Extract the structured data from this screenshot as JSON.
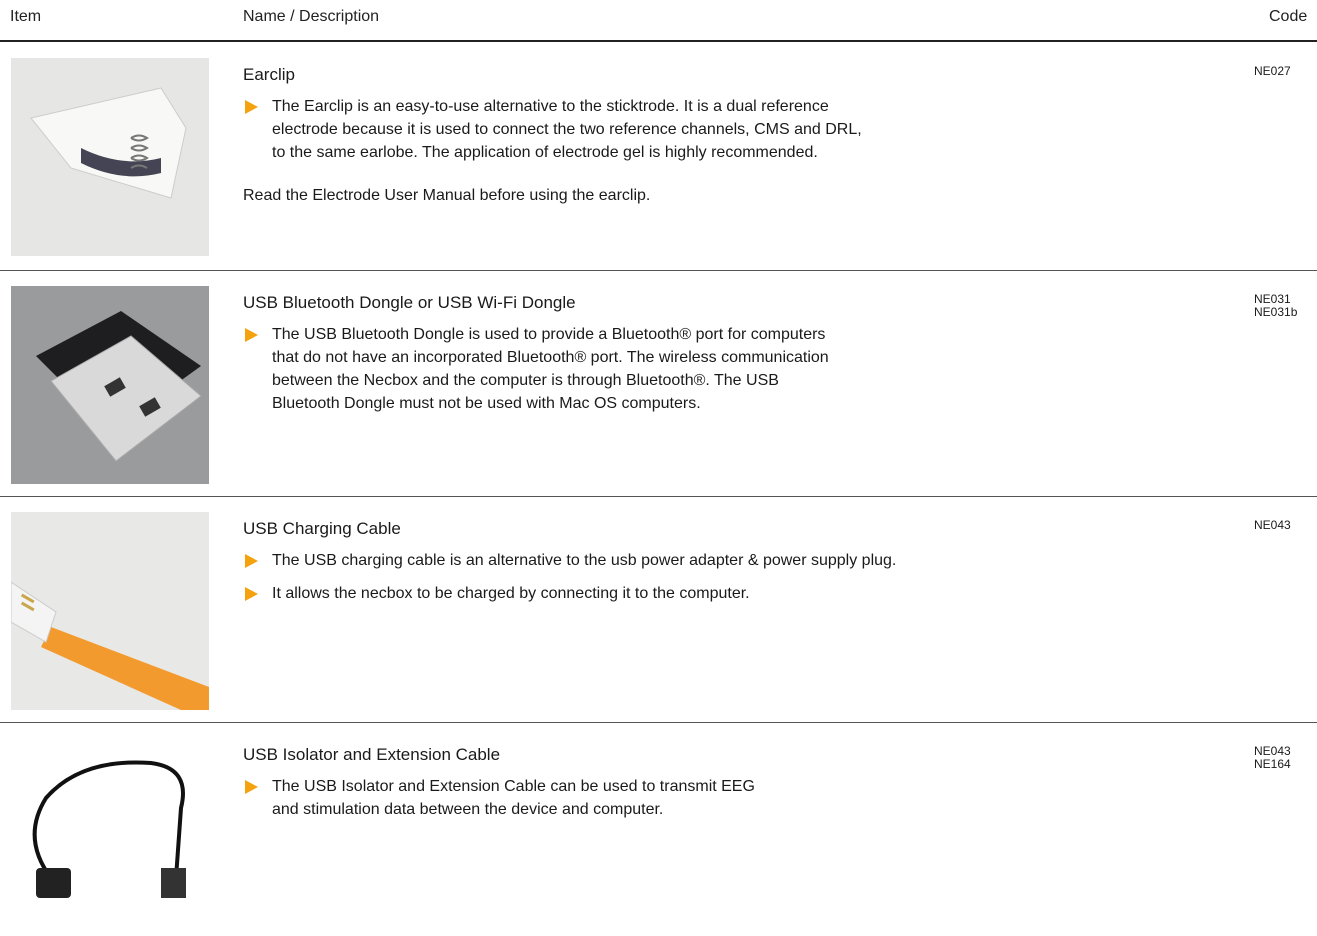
{
  "header": {
    "columns": [
      "Item",
      "Name / Description",
      "Code"
    ]
  },
  "rows": [
    {
      "name": "Earclip",
      "bullets": [
        [
          "The Earclip is an easy-to-use alternative to the sticktrode. It is a dual reference",
          "electrode because it is used to connect the two reference channels, CMS and DRL,",
          "to the same earlobe. The application of electrode gel is highly recommended."
        ]
      ],
      "note": "Read the Electrode User Manual before using the earclip.",
      "codes": [
        "NE027"
      ]
    },
    {
      "name": "USB Bluetooth Dongle or USB Wi-Fi Dongle",
      "bullets": [
        [
          "The USB Bluetooth Dongle is used to provide a Bluetooth® port for computers",
          "that do not have an incorporated Bluetooth® port. The wireless communication",
          "between the Necbox and the computer is through Bluetooth®. The USB",
          "Bluetooth Dongle must not be used with Mac OS computers."
        ]
      ],
      "codes": [
        "NE031",
        "NE031b"
      ]
    },
    {
      "name": "USB Charging Cable",
      "bullets": [
        [
          "The USB charging cable is an alternative to the usb power adapter & power supply plug."
        ],
        [
          "It allows the necbox to be charged by connecting it to the computer."
        ]
      ],
      "codes": [
        "NE043"
      ]
    },
    {
      "name": "USB Isolator and Extension Cable",
      "bullets": [
        [
          "The USB Isolator and Extension Cable can be used to transmit EEG",
          "and stimulation data between the device and computer."
        ]
      ],
      "codes": [
        "NE043",
        "NE164"
      ]
    }
  ]
}
